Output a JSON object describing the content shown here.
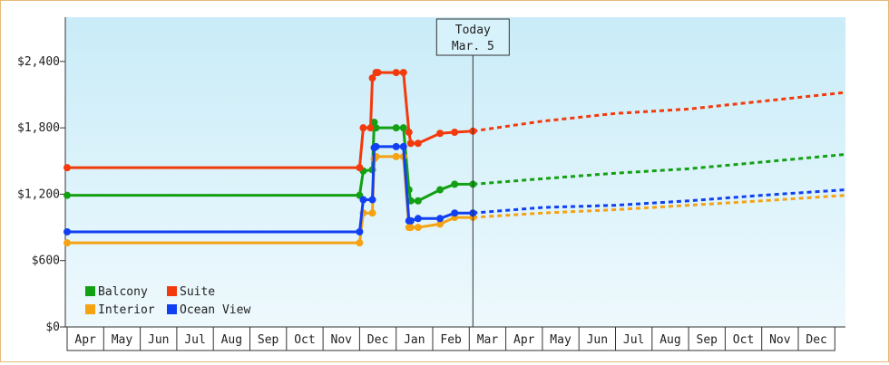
{
  "chart_data": {
    "type": "line",
    "title": "",
    "xlabel": "",
    "ylabel": "",
    "ylim": [
      0,
      2800
    ],
    "yticks": [
      "$0",
      "$600",
      "$1,200",
      "$1,800",
      "$2,400"
    ],
    "ytick_values": [
      0,
      600,
      1200,
      1800,
      2400
    ],
    "months": [
      "Apr",
      "May",
      "Jun",
      "Jul",
      "Aug",
      "Sep",
      "Oct",
      "Nov",
      "Dec",
      "Jan",
      "Feb",
      "Mar",
      "Apr",
      "May",
      "Jun",
      "Jul",
      "Aug",
      "Sep",
      "Oct",
      "Nov",
      "Dec"
    ],
    "grid": false,
    "background_gradient": [
      "#c9ecf8",
      "#eef9fd"
    ],
    "today": {
      "label_line1": "Today",
      "label_line2": "Mar. 5",
      "x": 11.1
    },
    "legend_position": "bottom-left",
    "series": [
      {
        "name": "Balcony",
        "color": "#13a013",
        "x": [
          0,
          8.0,
          8.1,
          8.35,
          8.4,
          8.45,
          9.0,
          9.2,
          9.35,
          9.4,
          9.6,
          10.2,
          10.6,
          11.1
        ],
        "y": [
          1190,
          1190,
          1410,
          1420,
          1850,
          1800,
          1800,
          1800,
          1240,
          1140,
          1140,
          1240,
          1290,
          1290
        ],
        "forecast": {
          "x": [
            11.1,
            13,
            15,
            17,
            19,
            21.4
          ],
          "y": [
            1290,
            1340,
            1390,
            1430,
            1490,
            1560
          ]
        }
      },
      {
        "name": "Suite",
        "color": "#f23a0c",
        "x": [
          0,
          8.0,
          8.1,
          8.3,
          8.35,
          8.45,
          8.5,
          9.0,
          9.2,
          9.35,
          9.4,
          9.6,
          10.2,
          10.6,
          11.1
        ],
        "y": [
          1440,
          1440,
          1800,
          1800,
          2250,
          2300,
          2300,
          2300,
          2300,
          1760,
          1660,
          1660,
          1750,
          1760,
          1770
        ],
        "forecast": {
          "x": [
            11.1,
            13,
            15,
            17,
            19,
            21.4
          ],
          "y": [
            1770,
            1860,
            1930,
            1970,
            2040,
            2120
          ]
        }
      },
      {
        "name": "Interior",
        "color": "#f5a213",
        "x": [
          0,
          8.0,
          8.1,
          8.35,
          8.4,
          8.45,
          9.0,
          9.2,
          9.35,
          9.4,
          9.6,
          10.2,
          10.6,
          11.1
        ],
        "y": [
          760,
          760,
          1030,
          1030,
          1520,
          1540,
          1540,
          1540,
          900,
          900,
          900,
          930,
          990,
          990
        ],
        "forecast": {
          "x": [
            11.1,
            13,
            15,
            17,
            19,
            21.4
          ],
          "y": [
            990,
            1030,
            1060,
            1100,
            1140,
            1190
          ]
        }
      },
      {
        "name": "Ocean View",
        "color": "#1040f2",
        "x": [
          0,
          8.0,
          8.1,
          8.35,
          8.4,
          8.45,
          9.0,
          9.2,
          9.35,
          9.4,
          9.6,
          10.2,
          10.6,
          11.1
        ],
        "y": [
          860,
          860,
          1150,
          1150,
          1620,
          1630,
          1630,
          1630,
          960,
          960,
          980,
          980,
          1030,
          1030
        ],
        "forecast": {
          "x": [
            11.1,
            13,
            15,
            17,
            19,
            21.4
          ],
          "y": [
            1030,
            1080,
            1100,
            1140,
            1190,
            1240
          ]
        }
      }
    ]
  }
}
